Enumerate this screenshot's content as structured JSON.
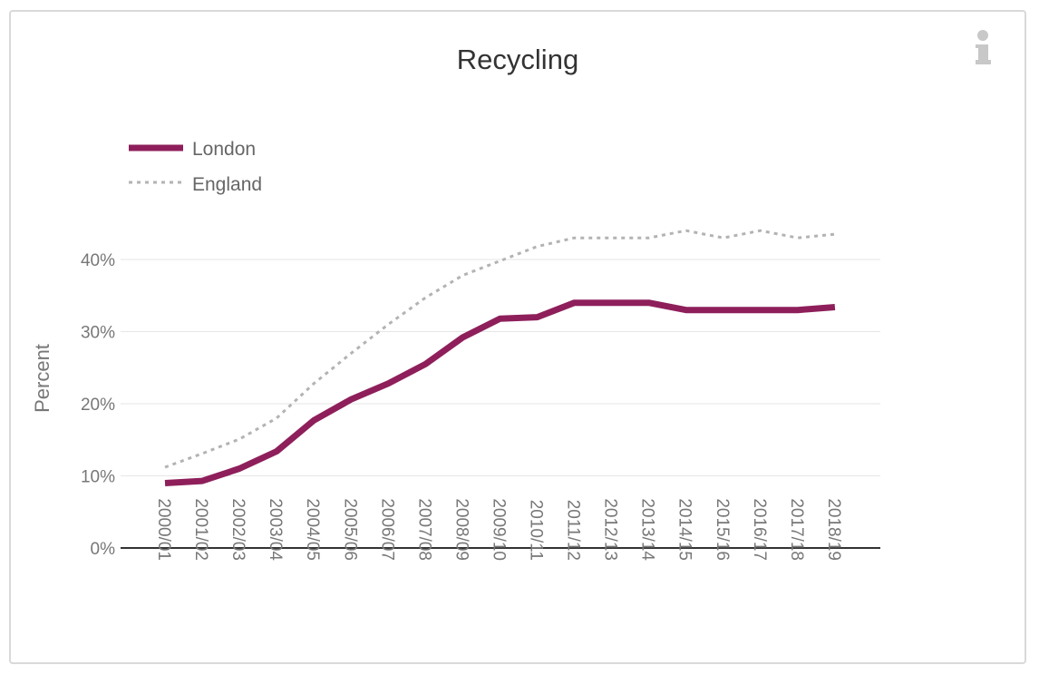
{
  "chart_data": {
    "type": "line",
    "title": "Recycling",
    "xlabel": "",
    "ylabel": "Percent",
    "categories": [
      "2000/01",
      "2001/02",
      "2002/03",
      "2003/04",
      "2004/05",
      "2005/06",
      "2006/07",
      "2007/08",
      "2008/09",
      "2009/10",
      "2010/11",
      "2011/12",
      "2012/13",
      "2013/14",
      "2014/15",
      "2015/16",
      "2016/17",
      "2017/18",
      "2018/19"
    ],
    "ylim": [
      0,
      40
    ],
    "yticks": [
      "0%",
      "10%",
      "20%",
      "30%",
      "40%"
    ],
    "ytick_values": [
      0,
      10,
      20,
      30,
      40
    ],
    "grid": true,
    "legend_position": "top-left",
    "series": [
      {
        "name": "London",
        "color": "#8e1f5b",
        "style": "solid",
        "values": [
          9,
          9.3,
          11,
          13.4,
          17.7,
          20.6,
          22.8,
          25.5,
          29.2,
          31.8,
          32,
          34,
          34,
          34,
          33,
          33,
          33,
          33,
          33.4
        ]
      },
      {
        "name": "England",
        "color": "#b3b3b3",
        "style": "dotted",
        "values": [
          11.2,
          13.1,
          15.1,
          18,
          22.8,
          27,
          31,
          34.7,
          37.8,
          39.8,
          41.8,
          43,
          43,
          43,
          44,
          43,
          44,
          43,
          43.5
        ]
      }
    ]
  },
  "icons": {
    "info": "info-icon"
  }
}
